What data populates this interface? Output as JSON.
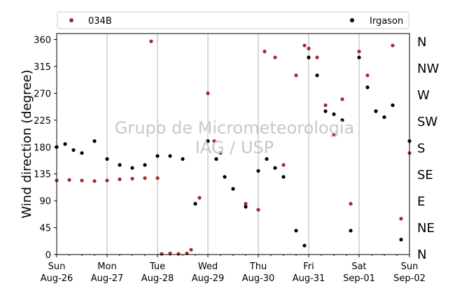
{
  "chart_data": {
    "type": "scatter",
    "title": "",
    "xlabel": "",
    "ylabel": "Wind direction (degree)",
    "ylim": [
      0,
      370
    ],
    "yticks": [
      0,
      45,
      90,
      135,
      180,
      225,
      270,
      315,
      360
    ],
    "xlim": [
      "2018-08-26",
      "2018-09-02"
    ],
    "xtick_labels": [
      {
        "day": "Sun",
        "date": "Aug-26"
      },
      {
        "day": "Mon",
        "date": "Aug-27"
      },
      {
        "day": "Tue",
        "date": "Aug-28"
      },
      {
        "day": "Wed",
        "date": "Aug-29"
      },
      {
        "day": "Thu",
        "date": "Aug-30"
      },
      {
        "day": "Fri",
        "date": "Aug-31"
      },
      {
        "day": "Sat",
        "date": "Sep-01"
      },
      {
        "day": "Sun",
        "date": "Sep-02"
      }
    ],
    "compass_labels": [
      "N",
      "NE",
      "E",
      "SE",
      "S",
      "SW",
      "W",
      "NW",
      "N"
    ],
    "grid": "vertical at day ticks",
    "legend_position": "top",
    "watermark": [
      "Grupo de Micrometeorologia",
      "IAG / USP"
    ],
    "series": [
      {
        "name": "034B",
        "color": "#a52a2a",
        "points": [
          [
            "2018-08-26 00:00",
            124
          ],
          [
            "2018-08-26 06:00",
            125
          ],
          [
            "2018-08-26 12:00",
            124
          ],
          [
            "2018-08-26 18:00",
            123
          ],
          [
            "2018-08-27 00:00",
            124
          ],
          [
            "2018-08-27 06:00",
            126
          ],
          [
            "2018-08-27 12:00",
            127
          ],
          [
            "2018-08-27 18:00",
            128
          ],
          [
            "2018-08-27 21:00",
            357
          ],
          [
            "2018-08-28 00:00",
            128
          ],
          [
            "2018-08-28 02:00",
            1
          ],
          [
            "2018-08-28 06:00",
            2
          ],
          [
            "2018-08-28 10:00",
            1
          ],
          [
            "2018-08-28 14:00",
            2
          ],
          [
            "2018-08-28 16:00",
            8
          ],
          [
            "2018-08-28 20:00",
            95
          ],
          [
            "2018-08-29 00:00",
            270
          ],
          [
            "2018-08-29 03:00",
            190
          ],
          [
            "2018-08-29 06:00",
            170
          ],
          [
            "2018-08-29 12:00",
            110
          ],
          [
            "2018-08-29 18:00",
            85
          ],
          [
            "2018-08-30 00:00",
            75
          ],
          [
            "2018-08-30 03:00",
            340
          ],
          [
            "2018-08-30 08:00",
            330
          ],
          [
            "2018-08-30 12:00",
            150
          ],
          [
            "2018-08-30 18:00",
            300
          ],
          [
            "2018-08-30 22:00",
            350
          ],
          [
            "2018-08-31 00:00",
            345
          ],
          [
            "2018-08-31 04:00",
            330
          ],
          [
            "2018-08-31 08:00",
            250
          ],
          [
            "2018-08-31 12:00",
            200
          ],
          [
            "2018-08-31 16:00",
            260
          ],
          [
            "2018-08-31 20:00",
            85
          ],
          [
            "2018-09-01 00:00",
            340
          ],
          [
            "2018-09-01 04:00",
            300
          ],
          [
            "2018-09-01 08:00",
            240
          ],
          [
            "2018-09-01 12:00",
            230
          ],
          [
            "2018-09-01 16:00",
            350
          ],
          [
            "2018-09-01 20:00",
            60
          ],
          [
            "2018-09-02 00:00",
            170
          ]
        ]
      },
      {
        "name": "Irgason",
        "color": "#000000",
        "points": [
          [
            "2018-08-26 00:00",
            180
          ],
          [
            "2018-08-26 04:00",
            185
          ],
          [
            "2018-08-26 08:00",
            175
          ],
          [
            "2018-08-26 12:00",
            170
          ],
          [
            "2018-08-26 18:00",
            190
          ],
          [
            "2018-08-27 00:00",
            160
          ],
          [
            "2018-08-27 06:00",
            150
          ],
          [
            "2018-08-27 12:00",
            145
          ],
          [
            "2018-08-27 18:00",
            150
          ],
          [
            "2018-08-28 00:00",
            165
          ],
          [
            "2018-08-28 06:00",
            165
          ],
          [
            "2018-08-28 12:00",
            160
          ],
          [
            "2018-08-28 18:00",
            85
          ],
          [
            "2018-08-29 00:00",
            190
          ],
          [
            "2018-08-29 04:00",
            160
          ],
          [
            "2018-08-29 08:00",
            130
          ],
          [
            "2018-08-29 12:00",
            110
          ],
          [
            "2018-08-29 18:00",
            80
          ],
          [
            "2018-08-30 00:00",
            140
          ],
          [
            "2018-08-30 04:00",
            160
          ],
          [
            "2018-08-30 08:00",
            145
          ],
          [
            "2018-08-30 12:00",
            130
          ],
          [
            "2018-08-30 18:00",
            40
          ],
          [
            "2018-08-30 22:00",
            15
          ],
          [
            "2018-08-31 00:00",
            330
          ],
          [
            "2018-08-31 04:00",
            300
          ],
          [
            "2018-08-31 08:00",
            240
          ],
          [
            "2018-08-31 12:00",
            235
          ],
          [
            "2018-08-31 16:00",
            225
          ],
          [
            "2018-08-31 20:00",
            40
          ],
          [
            "2018-09-01 00:00",
            330
          ],
          [
            "2018-09-01 04:00",
            280
          ],
          [
            "2018-09-01 08:00",
            240
          ],
          [
            "2018-09-01 12:00",
            230
          ],
          [
            "2018-09-01 16:00",
            250
          ],
          [
            "2018-09-01 20:00",
            25
          ],
          [
            "2018-09-02 00:00",
            190
          ]
        ]
      }
    ]
  }
}
